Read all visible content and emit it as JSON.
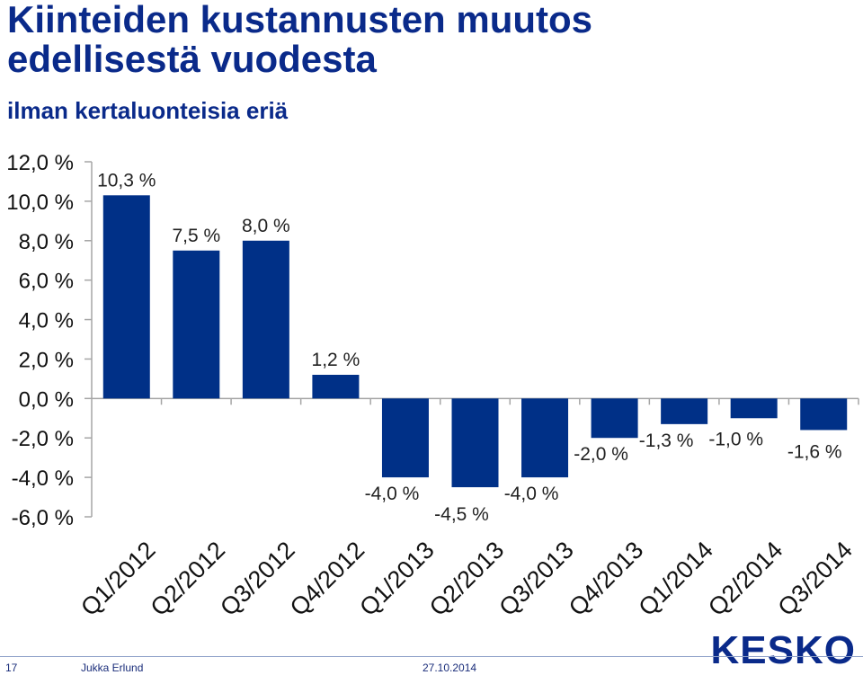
{
  "title_line1": "Kiinteiden kustannusten muutos",
  "title_line2": "edellisestä vuodesta",
  "subtitle": "ilman kertaluonteisia eriä",
  "footer": {
    "page": "17",
    "author": "Jukka Erlund",
    "date": "27.10.2014",
    "logo": "KESKO"
  },
  "colors": {
    "bar": "#003087",
    "title": "#0a2a8a",
    "axis": "#a6a6a6"
  },
  "chart_data": {
    "type": "bar",
    "title": "Kiinteiden kustannusten muutos edellisestä vuodesta",
    "subtitle": "ilman kertaluonteisia eriä",
    "xlabel": "",
    "ylabel": "",
    "categories": [
      "Q1/2012",
      "Q2/2012",
      "Q3/2012",
      "Q4/2012",
      "Q1/2013",
      "Q2/2013",
      "Q3/2013",
      "Q4/2013",
      "Q1/2014",
      "Q2/2014",
      "Q3/2014"
    ],
    "values": [
      10.3,
      7.5,
      8.0,
      1.2,
      -4.0,
      -4.5,
      -4.0,
      -2.0,
      -1.3,
      -1.0,
      -1.6
    ],
    "data_labels": [
      "10,3 %",
      "7,5 %",
      "8,0 %",
      "1,2 %",
      "-4,0 %",
      "-4,5 %",
      "-4,0 %",
      "-2,0 %",
      "-1,3 %",
      "-1,0 %",
      "-1,6 %"
    ],
    "ylim": [
      -6,
      12
    ],
    "yticks": [
      12,
      10,
      8,
      6,
      4,
      2,
      0,
      -2,
      -4,
      -6
    ],
    "ytick_labels": [
      "12,0 %",
      "10,0 %",
      "8,0 %",
      "6,0 %",
      "4,0 %",
      "2,0 %",
      "0,0 %",
      "-2,0 %",
      "-4,0 %",
      "-6,0 %"
    ],
    "grid": false,
    "legend": "none"
  }
}
